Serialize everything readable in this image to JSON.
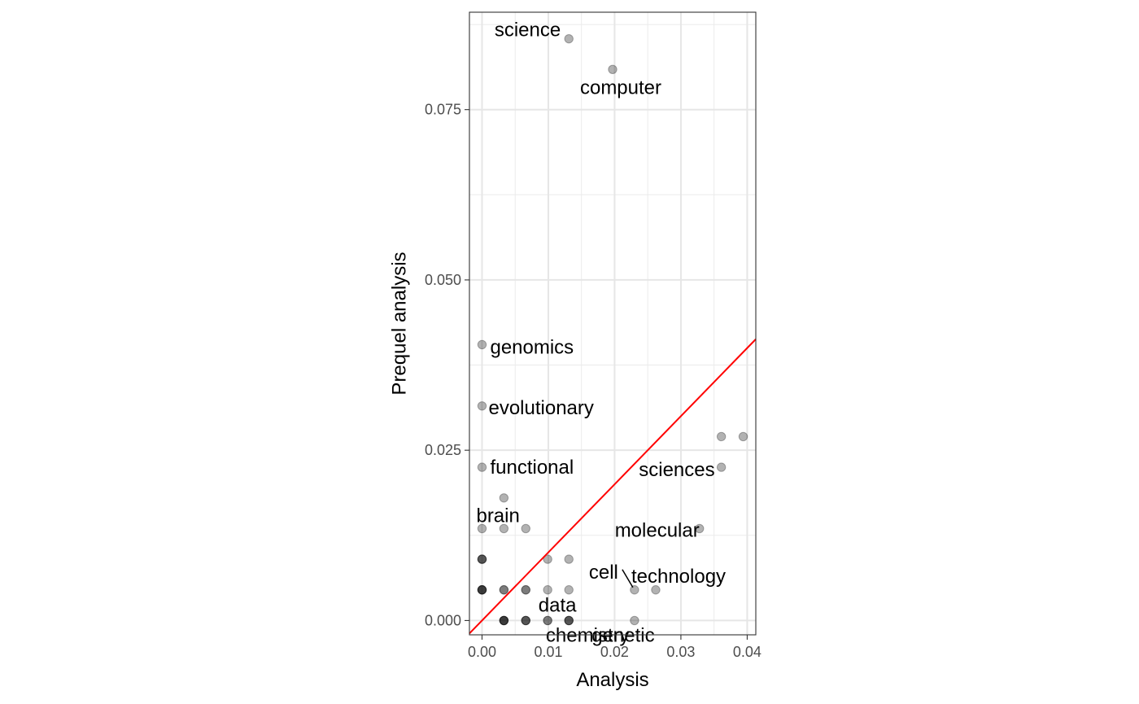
{
  "chart_data": {
    "type": "scatter",
    "title": "",
    "xlabel": "Analysis",
    "ylabel": "Prequel analysis",
    "xlim": [
      -0.0019,
      0.0413
    ],
    "ylim": [
      -0.0021,
      0.0893
    ],
    "x_ticks": [
      0.0,
      0.01,
      0.02,
      0.03,
      0.04
    ],
    "x_tick_labels": [
      "0.00",
      "0.01",
      "0.02",
      "0.03",
      "0.04"
    ],
    "y_ticks": [
      0.0,
      0.025,
      0.05,
      0.075
    ],
    "y_tick_labels": [
      "0.000",
      "0.025",
      "0.050",
      "0.075"
    ],
    "grid": true,
    "theme": "bw",
    "point_color": "#000000",
    "point_opacity": 0.3,
    "reference_line": {
      "type": "identity",
      "slope": 1,
      "intercept": 0,
      "color": "#ff0000"
    },
    "points": [
      {
        "x": 0.0131,
        "y": 0.0854,
        "label": "science"
      },
      {
        "x": 0.0197,
        "y": 0.0809,
        "label": "computer"
      },
      {
        "x": 0.0,
        "y": 0.0405,
        "label": "genomics"
      },
      {
        "x": 0.0,
        "y": 0.0315,
        "label": "evolutionary"
      },
      {
        "x": 0.0,
        "y": 0.0225,
        "label": "functional"
      },
      {
        "x": 0.0361,
        "y": 0.027,
        "label": ""
      },
      {
        "x": 0.0394,
        "y": 0.027,
        "label": ""
      },
      {
        "x": 0.0361,
        "y": 0.0225,
        "label": "sciences"
      },
      {
        "x": 0.0033,
        "y": 0.018,
        "label": ""
      },
      {
        "x": 0.0,
        "y": 0.0135,
        "label": "brain"
      },
      {
        "x": 0.0033,
        "y": 0.0135,
        "label": ""
      },
      {
        "x": 0.0066,
        "y": 0.0135,
        "label": ""
      },
      {
        "x": 0.0328,
        "y": 0.0135,
        "label": "molecular"
      },
      {
        "x": 0.0,
        "y": 0.009,
        "label": ""
      },
      {
        "x": 0.0,
        "y": 0.009,
        "label": ""
      },
      {
        "x": 0.0,
        "y": 0.009,
        "label": ""
      },
      {
        "x": 0.0099,
        "y": 0.009,
        "label": ""
      },
      {
        "x": 0.0131,
        "y": 0.009,
        "label": ""
      },
      {
        "x": 0.0,
        "y": 0.0045,
        "label": ""
      },
      {
        "x": 0.0,
        "y": 0.0045,
        "label": ""
      },
      {
        "x": 0.0,
        "y": 0.0045,
        "label": ""
      },
      {
        "x": 0.0,
        "y": 0.0045,
        "label": ""
      },
      {
        "x": 0.0033,
        "y": 0.0045,
        "label": ""
      },
      {
        "x": 0.0033,
        "y": 0.0045,
        "label": ""
      },
      {
        "x": 0.0066,
        "y": 0.0045,
        "label": ""
      },
      {
        "x": 0.0066,
        "y": 0.0045,
        "label": ""
      },
      {
        "x": 0.0099,
        "y": 0.0045,
        "label": ""
      },
      {
        "x": 0.0131,
        "y": 0.0045,
        "label": ""
      },
      {
        "x": 0.023,
        "y": 0.0045,
        "label": "cell"
      },
      {
        "x": 0.0262,
        "y": 0.0045,
        "label": "technology"
      },
      {
        "x": 0.0033,
        "y": 0.0,
        "label": ""
      },
      {
        "x": 0.0033,
        "y": 0.0,
        "label": ""
      },
      {
        "x": 0.0033,
        "y": 0.0,
        "label": ""
      },
      {
        "x": 0.0033,
        "y": 0.0,
        "label": ""
      },
      {
        "x": 0.0066,
        "y": 0.0,
        "label": ""
      },
      {
        "x": 0.0066,
        "y": 0.0,
        "label": ""
      },
      {
        "x": 0.0066,
        "y": 0.0,
        "label": ""
      },
      {
        "x": 0.0099,
        "y": 0.0,
        "label": "data"
      },
      {
        "x": 0.0099,
        "y": 0.0,
        "label": ""
      },
      {
        "x": 0.0131,
        "y": 0.0,
        "label": "chemistry"
      },
      {
        "x": 0.0131,
        "y": 0.0,
        "label": ""
      },
      {
        "x": 0.0131,
        "y": 0.0,
        "label": ""
      },
      {
        "x": 0.023,
        "y": 0.0,
        "label": "genetic"
      }
    ]
  }
}
